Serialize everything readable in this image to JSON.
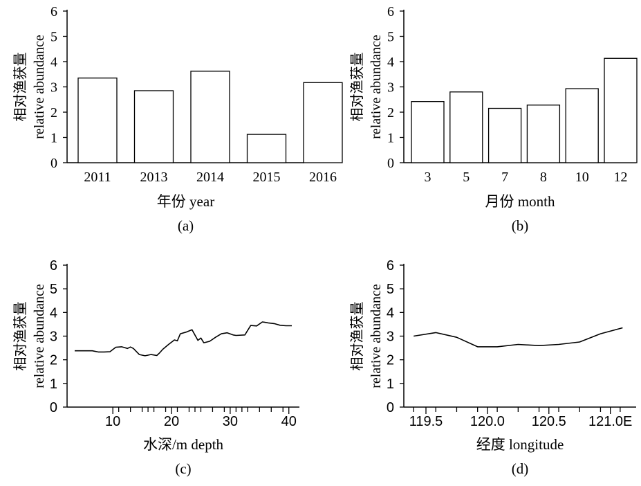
{
  "chart_data": [
    {
      "type": "bar",
      "panel_label": "(a)",
      "xlabel": "年份 year",
      "ylabel_cn": "相对渔获量",
      "ylabel_en": "relative abundance",
      "ylim": [
        0,
        6
      ],
      "yticks": [
        "0",
        "1",
        "2",
        "3",
        "4",
        "5",
        "6"
      ],
      "categories": [
        "2011",
        "2013",
        "2014",
        "2015",
        "2016"
      ],
      "values": [
        3.35,
        2.85,
        3.62,
        1.12,
        3.17
      ]
    },
    {
      "type": "bar",
      "panel_label": "(b)",
      "xlabel": "月份 month",
      "ylabel_cn": "相对渔获量",
      "ylabel_en": "relative abundance",
      "ylim": [
        0,
        6
      ],
      "yticks": [
        "0",
        "1",
        "2",
        "3",
        "4",
        "5",
        "6"
      ],
      "categories": [
        "3",
        "5",
        "7",
        "8",
        "10",
        "12"
      ],
      "values": [
        2.42,
        2.8,
        2.15,
        2.28,
        2.93,
        4.13
      ]
    },
    {
      "type": "line",
      "panel_label": "(c)",
      "xlabel": "水深/m depth",
      "ylabel_cn": "相对渔获量",
      "ylabel_en": "relative abundance",
      "ylim": [
        0,
        6
      ],
      "yticks": [
        "0",
        "1",
        "2",
        "3",
        "4",
        "5",
        "6"
      ],
      "xlim": [
        2.2,
        41.8
      ],
      "xticks": [
        "10",
        "20",
        "30",
        "40"
      ],
      "xtick_values": [
        10,
        20,
        30,
        40
      ],
      "rug": [
        11,
        13,
        15,
        16,
        17,
        19,
        21,
        23,
        24,
        25,
        27,
        29,
        31,
        32,
        33,
        35,
        37,
        39
      ],
      "x": [
        3.5,
        4.5,
        5.5,
        6.5,
        7.5,
        8.5,
        9.5,
        10.5,
        11.5,
        12.5,
        13.0,
        13.5,
        14.5,
        15.5,
        16.5,
        17.5,
        18.0,
        18.5,
        19.5,
        20.5,
        21.0,
        21.5,
        22.5,
        23.5,
        24.5,
        25.0,
        25.5,
        26.5,
        27.5,
        28.5,
        29.5,
        30.5,
        31.0,
        32.5,
        33.5,
        34.5,
        35.5,
        36.5,
        37.5,
        38.5,
        39.5,
        40.5
      ],
      "y": [
        2.38,
        2.38,
        2.38,
        2.38,
        2.33,
        2.33,
        2.34,
        2.53,
        2.55,
        2.48,
        2.54,
        2.48,
        2.22,
        2.17,
        2.22,
        2.18,
        2.3,
        2.44,
        2.65,
        2.84,
        2.8,
        3.1,
        3.17,
        3.27,
        2.82,
        2.92,
        2.72,
        2.78,
        2.95,
        3.1,
        3.14,
        3.05,
        3.03,
        3.05,
        3.45,
        3.43,
        3.6,
        3.56,
        3.53,
        3.46,
        3.44,
        3.44
      ]
    },
    {
      "type": "line",
      "panel_label": "(d)",
      "xlabel": "经度 longitude",
      "ylabel_cn": "相对渔获量",
      "ylabel_en": "relative abundance",
      "ylim": [
        0,
        6
      ],
      "yticks": [
        "0",
        "1",
        "2",
        "3",
        "4",
        "5",
        "6"
      ],
      "xlim": [
        119.32,
        121.21
      ],
      "xticks": [
        "119.5",
        "120.0",
        "120.5",
        "121.0E"
      ],
      "xtick_values": [
        119.5,
        120.0,
        120.5,
        121.0
      ],
      "rug": [
        119.4,
        119.58,
        119.75,
        119.92,
        120.08,
        120.25,
        120.42,
        120.58,
        120.75,
        120.92,
        121.08
      ],
      "x": [
        119.4,
        119.58,
        119.75,
        119.92,
        120.08,
        120.25,
        120.42,
        120.58,
        120.75,
        120.92,
        121.1
      ],
      "y": [
        3.0,
        3.15,
        2.95,
        2.55,
        2.55,
        2.65,
        2.6,
        2.65,
        2.75,
        3.1,
        3.35
      ]
    }
  ]
}
